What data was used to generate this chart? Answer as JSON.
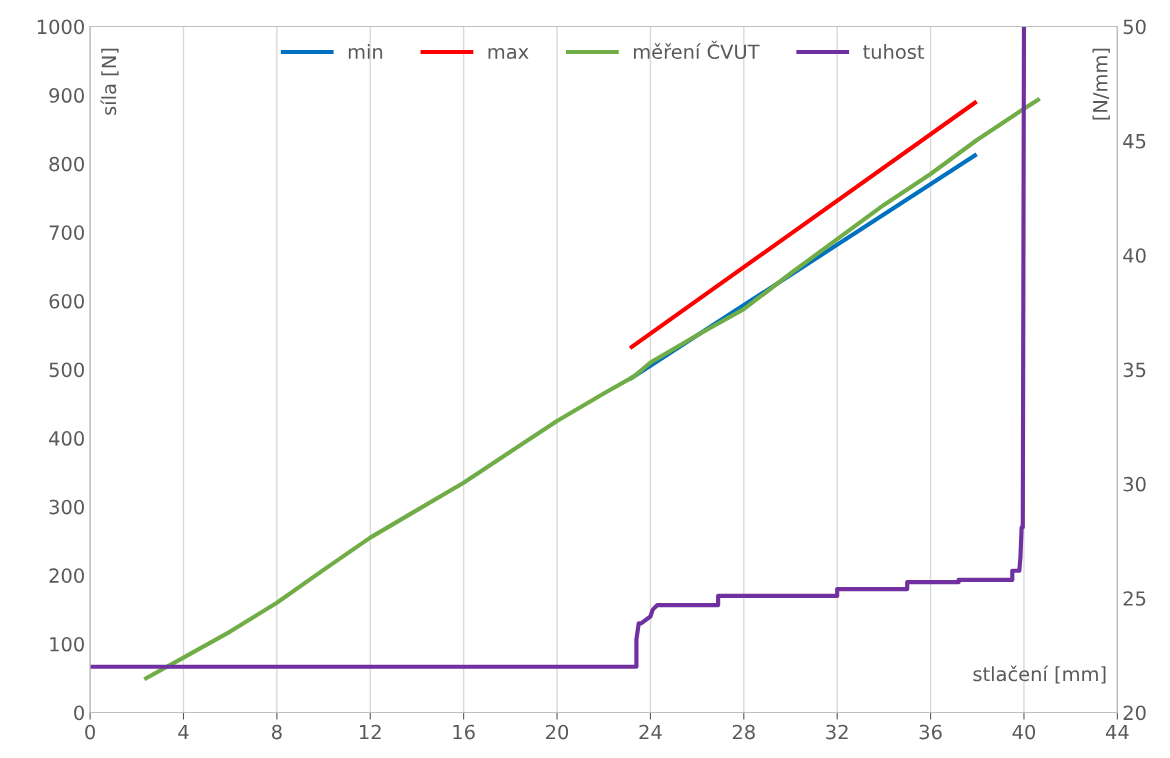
{
  "chart_data": {
    "type": "line",
    "xlabel": "stlačení [mm]",
    "ylabel": "síla [N]",
    "y2label": "[N/mm]",
    "xlim": [
      0,
      44
    ],
    "xticks": [
      0,
      4,
      8,
      12,
      16,
      20,
      24,
      28,
      32,
      36,
      40,
      44
    ],
    "ylim": [
      0,
      1000
    ],
    "yticks": [
      0,
      100,
      200,
      300,
      400,
      500,
      600,
      700,
      800,
      900,
      1000
    ],
    "y2lim": [
      20,
      50
    ],
    "y2ticks": [
      20,
      25,
      30,
      35,
      40,
      45,
      50
    ],
    "grid": "x",
    "legend": "top",
    "marker": "none",
    "line_style": "solid",
    "series": [
      {
        "name": "min",
        "color": "#0070c0",
        "x": [
          23.2,
          37.9
        ],
        "values": [
          488,
          812
        ]
      },
      {
        "name": "max",
        "color": "#ff0000",
        "x": [
          23.2,
          37.9
        ],
        "values": [
          533,
          889
        ]
      },
      {
        "name": "měření ČVUT",
        "color": "#70ad47",
        "x": [
          2.4,
          4,
          6,
          8,
          10,
          12,
          14,
          16,
          18,
          20,
          22,
          23.3,
          24,
          26,
          28,
          30,
          32,
          34,
          36,
          38,
          40,
          40.6
        ],
        "values": [
          50,
          80,
          118,
          160,
          208,
          255,
          295,
          335,
          380,
          425,
          465,
          490,
          510,
          550,
          588,
          640,
          690,
          740,
          785,
          835,
          880,
          893
        ]
      },
      {
        "name": "tuhost",
        "color": "#7030a0",
        "axis": "y2",
        "x": [
          0,
          23.4,
          23.4,
          23.5,
          23.6,
          24.0,
          24.1,
          24.3,
          26.9,
          26.9,
          32.0,
          32.0,
          35.0,
          35.0,
          37.2,
          37.2,
          39.5,
          39.5,
          39.8,
          39.85,
          39.9,
          39.95,
          40.0
        ],
        "values": [
          22,
          22,
          23.2,
          23.9,
          23.9,
          24.2,
          24.5,
          24.7,
          24.7,
          25.1,
          25.1,
          25.4,
          25.4,
          25.7,
          25.7,
          25.8,
          25.8,
          26.2,
          26.2,
          26.8,
          28.1,
          28.1,
          50
        ]
      }
    ]
  }
}
